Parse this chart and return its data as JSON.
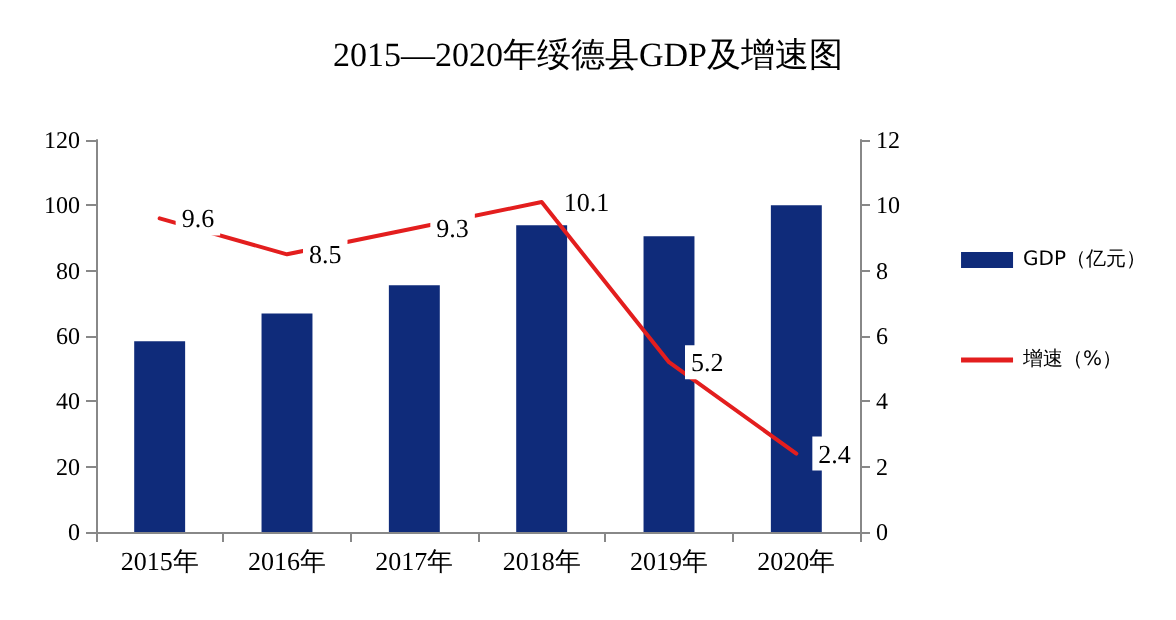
{
  "chart_data": {
    "type": "bar",
    "title": "2015—2020年绥德县GDP及增速图",
    "categories": [
      "2015年",
      "2016年",
      "2017年",
      "2018年",
      "2019年",
      "2020年"
    ],
    "series": [
      {
        "name": "GDP（亿元）",
        "color": "#0f2b7a",
        "values": [
          58.4,
          66.9,
          75.5,
          93.9,
          90.5,
          100.0
        ]
      },
      {
        "name": "增速（%）",
        "type": "line",
        "axis": "y2",
        "color": "#e31e1e",
        "values": [
          9.6,
          8.5,
          9.3,
          10.1,
          5.2,
          2.4
        ],
        "value_labels": [
          "9.6",
          "8.5",
          "9.3",
          "10.1",
          "5.2",
          "2.4"
        ]
      }
    ],
    "ylim": [
      0,
      120
    ],
    "yticks": [
      0,
      20,
      40,
      60,
      80,
      100,
      120
    ],
    "y2lim": [
      0,
      12
    ],
    "y2ticks": [
      0,
      2,
      4,
      6,
      8,
      10,
      12
    ],
    "grid": false,
    "legend": "right",
    "marker": "none",
    "line_style": "solid"
  }
}
